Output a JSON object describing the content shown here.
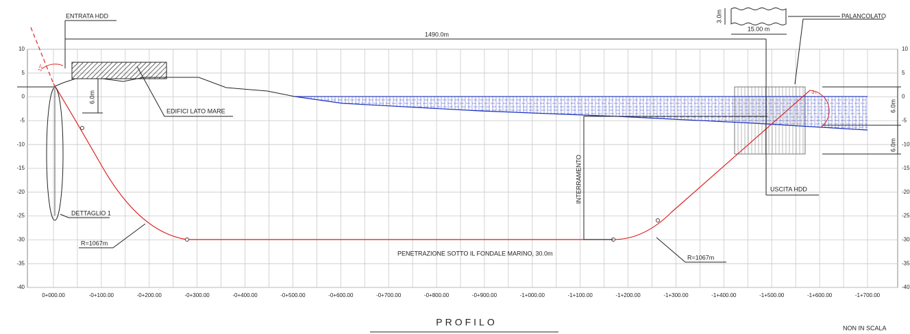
{
  "labels": {
    "entry": "ENTRATA HDD",
    "length": "1490.0m",
    "sheet_height": "3.0m",
    "sheet_width": "15.00 m",
    "sheet_piling": "PALANCOLATO",
    "entry_angle": "12°",
    "exit_angle": "5°",
    "buildings": "EDIFICI LATO MARE",
    "left_depth": "6.0m",
    "detail": "DETTAGLIO 1",
    "radius_entry": "R=1067m",
    "penetration": "PENETRAZIONE SOTTO IL FONDALE MARINO, 30.0m",
    "burial": "INTERRAMENTO",
    "exit": "USCITA HDD",
    "radius_exit": "R=1067m",
    "right_depth_top": "6.0m",
    "right_depth_bottom": "6.0m",
    "title": "PROFILO",
    "scale_note": "NON IN SCALA"
  },
  "axes": {
    "yticks": [
      10,
      5,
      0,
      -5,
      -10,
      -15,
      -20,
      -25,
      -30,
      -35,
      -40
    ],
    "xticks": [
      {
        "value": 0,
        "label": "0+000.00"
      },
      {
        "value": 100,
        "label": "-0+100.00"
      },
      {
        "value": 200,
        "label": "-0+200.00"
      },
      {
        "value": 300,
        "label": "-0+300.00"
      },
      {
        "value": 400,
        "label": "-0+400.00"
      },
      {
        "value": 500,
        "label": "-0+500.00"
      },
      {
        "value": 600,
        "label": "-0+600.00"
      },
      {
        "value": 700,
        "label": "-0+700.00"
      },
      {
        "value": 800,
        "label": "-0+800.00"
      },
      {
        "value": 900,
        "label": "-0+900.00"
      },
      {
        "value": 1000,
        "label": "-1+000.00"
      },
      {
        "value": 1100,
        "label": "-1+100.00"
      },
      {
        "value": 1200,
        "label": "-1+200.00"
      },
      {
        "value": 1300,
        "label": "-1+300.00"
      },
      {
        "value": 1400,
        "label": "-1+400.00"
      },
      {
        "value": 1500,
        "label": "-1+500.00"
      },
      {
        "value": 1600,
        "label": "-1+600.00"
      },
      {
        "value": 1700,
        "label": "-1+700.00"
      }
    ]
  }
}
